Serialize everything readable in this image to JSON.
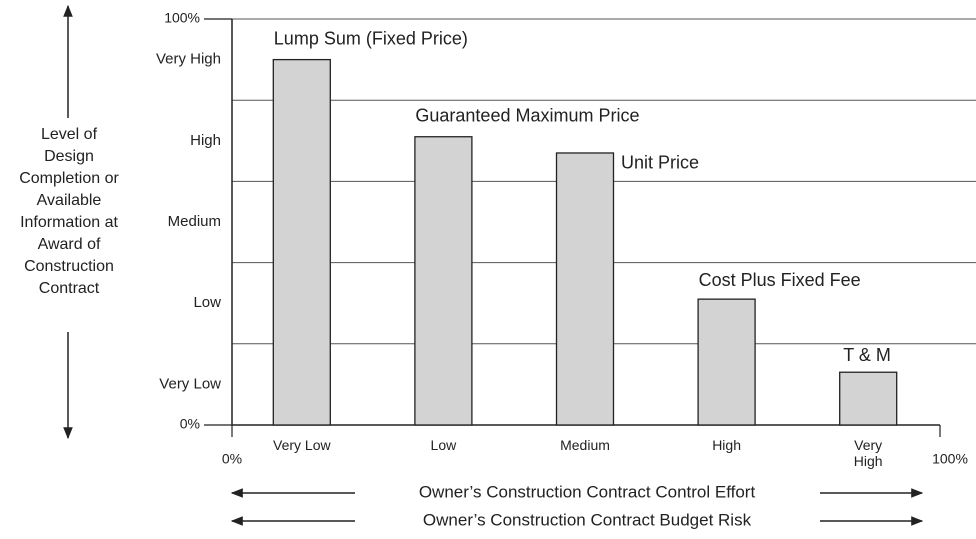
{
  "chart_data": {
    "type": "bar",
    "y_axis_label": "Level of Design Completion or Available Information at Award of Construction Contract",
    "x_axis_labels": [
      "Owner’s Construction Contract Control Effort",
      "Owner’s Construction Contract Budget Risk"
    ],
    "categories": [
      "Very Low",
      "Low",
      "Medium",
      "High",
      "Very High"
    ],
    "bar_labels": [
      "Lump Sum (Fixed Price)",
      "Guaranteed Maximum Price",
      "Unit Price",
      "Cost Plus Fixed Fee",
      "T & M"
    ],
    "values": [
      90,
      71,
      67,
      31,
      13
    ],
    "color": "#d3d3d3",
    "y_levels": [
      "Very Low",
      "Low",
      "Medium",
      "High",
      "Very High"
    ],
    "ylim": [
      0,
      100
    ],
    "yticks": [
      {
        "value": 0,
        "label": "0%"
      },
      {
        "value": 100,
        "label": "100%"
      }
    ],
    "ygrid": [
      20,
      40,
      60,
      80,
      100
    ],
    "xticks": [
      {
        "value": 0,
        "label": "0%"
      },
      {
        "value": 100,
        "label": "100%"
      }
    ],
    "grid": true
  }
}
